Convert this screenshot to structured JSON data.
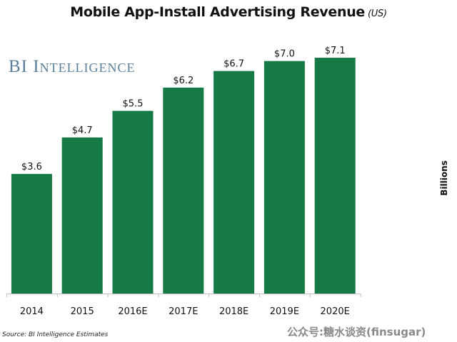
{
  "chart_data": {
    "type": "bar",
    "title": "Mobile App-Install Advertising Revenue",
    "subtitle": "(US)",
    "categories": [
      "2014",
      "2015",
      "2016E",
      "2017E",
      "2018E",
      "2019E",
      "2020E"
    ],
    "values": [
      3.6,
      4.7,
      5.5,
      6.2,
      6.7,
      7.0,
      7.1
    ],
    "data_labels": [
      "$3.6",
      "$4.7",
      "$5.5",
      "$6.2",
      "$6.7",
      "$7.0",
      "$7.1"
    ],
    "xlabel": "",
    "ylabel": "Billions",
    "ylim": [
      0,
      7.1
    ],
    "grid": false,
    "bar_color": "#157a45",
    "legend": null
  },
  "brand": "BI Intelligence",
  "source": "Source: BI Intelligence Estimates",
  "watermark": "公众号:糖水谈资(finsugar)"
}
